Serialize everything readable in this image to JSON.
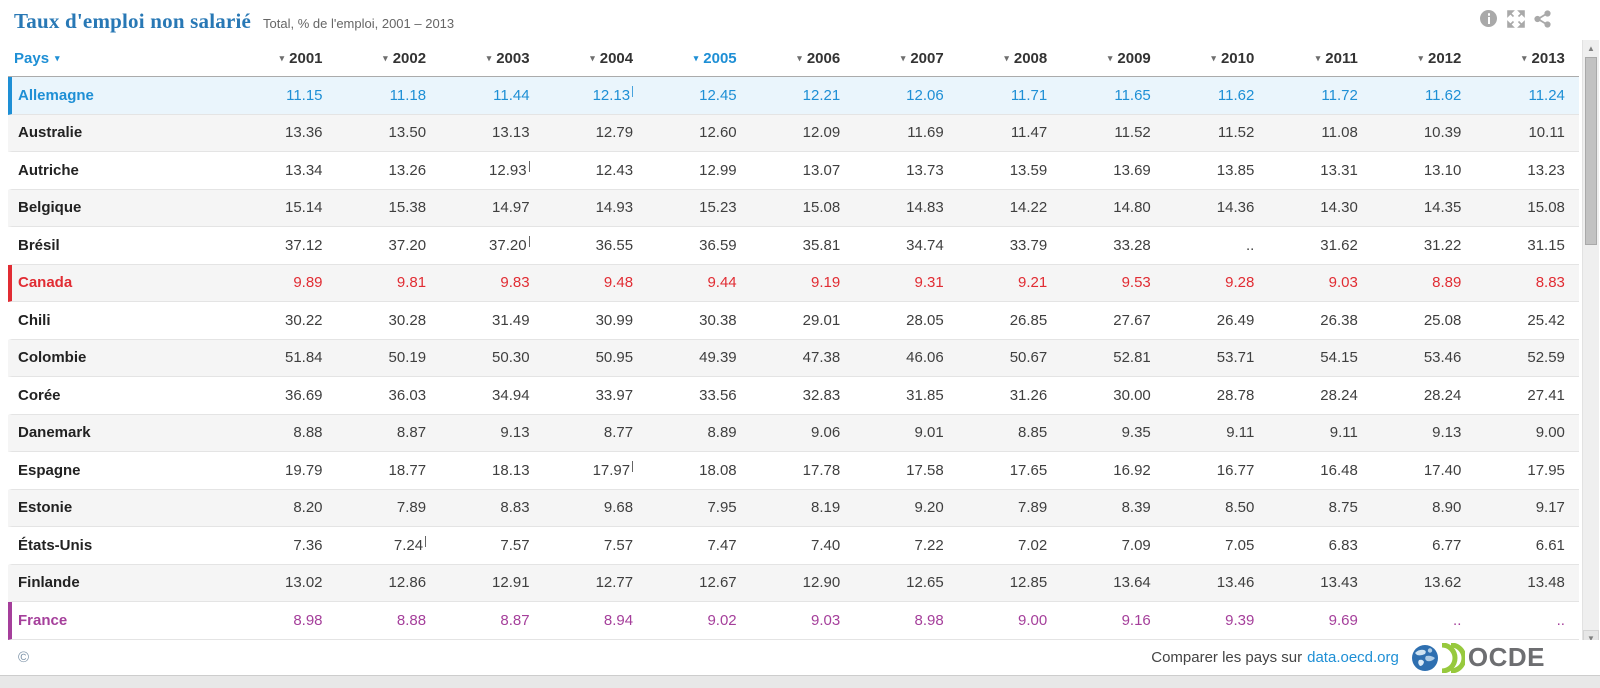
{
  "header": {
    "title": "Taux d'emploi non salarié",
    "subtitle": "Total, % de l'emploi, 2001 – 2013"
  },
  "icons": {
    "sort_caret": "▾",
    "scroll_up": "▲",
    "scroll_down": "▼"
  },
  "table": {
    "country_column_label": "Pays",
    "years": [
      "2001",
      "2002",
      "2003",
      "2004",
      "2005",
      "2006",
      "2007",
      "2008",
      "2009",
      "2010",
      "2011",
      "2012",
      "2013"
    ],
    "selected_year": "2005",
    "missing_value_symbol": "..",
    "rows": [
      {
        "country": "Allemagne",
        "highlight": "blue",
        "breaks": [
          3
        ],
        "values": [
          "11.15",
          "11.18",
          "11.44",
          "12.13",
          "12.45",
          "12.21",
          "12.06",
          "11.71",
          "11.65",
          "11.62",
          "11.72",
          "11.62",
          "11.24"
        ]
      },
      {
        "country": "Australie",
        "highlight": null,
        "breaks": [],
        "values": [
          "13.36",
          "13.50",
          "13.13",
          "12.79",
          "12.60",
          "12.09",
          "11.69",
          "11.47",
          "11.52",
          "11.52",
          "11.08",
          "10.39",
          "10.11"
        ]
      },
      {
        "country": "Autriche",
        "highlight": null,
        "breaks": [
          2
        ],
        "values": [
          "13.34",
          "13.26",
          "12.93",
          "12.43",
          "12.99",
          "13.07",
          "13.73",
          "13.59",
          "13.69",
          "13.85",
          "13.31",
          "13.10",
          "13.23"
        ]
      },
      {
        "country": "Belgique",
        "highlight": null,
        "breaks": [],
        "values": [
          "15.14",
          "15.38",
          "14.97",
          "14.93",
          "15.23",
          "15.08",
          "14.83",
          "14.22",
          "14.80",
          "14.36",
          "14.30",
          "14.35",
          "15.08"
        ]
      },
      {
        "country": "Brésil",
        "highlight": null,
        "breaks": [
          2
        ],
        "values": [
          "37.12",
          "37.20",
          "37.20",
          "36.55",
          "36.59",
          "35.81",
          "34.74",
          "33.79",
          "33.28",
          "..",
          "31.62",
          "31.22",
          "31.15"
        ]
      },
      {
        "country": "Canada",
        "highlight": "red",
        "breaks": [],
        "values": [
          "9.89",
          "9.81",
          "9.83",
          "9.48",
          "9.44",
          "9.19",
          "9.31",
          "9.21",
          "9.53",
          "9.28",
          "9.03",
          "8.89",
          "8.83"
        ]
      },
      {
        "country": "Chili",
        "highlight": null,
        "breaks": [],
        "values": [
          "30.22",
          "30.28",
          "31.49",
          "30.99",
          "30.38",
          "29.01",
          "28.05",
          "26.85",
          "27.67",
          "26.49",
          "26.38",
          "25.08",
          "25.42"
        ]
      },
      {
        "country": "Colombie",
        "highlight": null,
        "breaks": [],
        "values": [
          "51.84",
          "50.19",
          "50.30",
          "50.95",
          "49.39",
          "47.38",
          "46.06",
          "50.67",
          "52.81",
          "53.71",
          "54.15",
          "53.46",
          "52.59"
        ]
      },
      {
        "country": "Corée",
        "highlight": null,
        "breaks": [],
        "values": [
          "36.69",
          "36.03",
          "34.94",
          "33.97",
          "33.56",
          "32.83",
          "31.85",
          "31.26",
          "30.00",
          "28.78",
          "28.24",
          "28.24",
          "27.41"
        ]
      },
      {
        "country": "Danemark",
        "highlight": null,
        "breaks": [],
        "values": [
          "8.88",
          "8.87",
          "9.13",
          "8.77",
          "8.89",
          "9.06",
          "9.01",
          "8.85",
          "9.35",
          "9.11",
          "9.11",
          "9.13",
          "9.00"
        ]
      },
      {
        "country": "Espagne",
        "highlight": null,
        "breaks": [
          3
        ],
        "values": [
          "19.79",
          "18.77",
          "18.13",
          "17.97",
          "18.08",
          "17.78",
          "17.58",
          "17.65",
          "16.92",
          "16.77",
          "16.48",
          "17.40",
          "17.95"
        ]
      },
      {
        "country": "Estonie",
        "highlight": null,
        "breaks": [],
        "values": [
          "8.20",
          "7.89",
          "8.83",
          "9.68",
          "7.95",
          "8.19",
          "9.20",
          "7.89",
          "8.39",
          "8.50",
          "8.75",
          "8.90",
          "9.17"
        ]
      },
      {
        "country": "États-Unis",
        "highlight": null,
        "breaks": [
          1
        ],
        "values": [
          "7.36",
          "7.24",
          "7.57",
          "7.57",
          "7.47",
          "7.40",
          "7.22",
          "7.02",
          "7.09",
          "7.05",
          "6.83",
          "6.77",
          "6.61"
        ]
      },
      {
        "country": "Finlande",
        "highlight": null,
        "breaks": [],
        "values": [
          "13.02",
          "12.86",
          "12.91",
          "12.77",
          "12.67",
          "12.90",
          "12.65",
          "12.85",
          "13.64",
          "13.46",
          "13.43",
          "13.62",
          "13.48"
        ]
      },
      {
        "country": "France",
        "highlight": "purple",
        "breaks": [],
        "values": [
          "8.98",
          "8.88",
          "8.87",
          "8.94",
          "9.02",
          "9.03",
          "8.98",
          "9.00",
          "9.16",
          "9.39",
          "9.69",
          "..",
          ".."
        ]
      }
    ]
  },
  "footer": {
    "copyright": "©",
    "compare_text": "Comparer les pays sur",
    "compare_link": "data.oecd.org",
    "logo_text": "OCDE"
  },
  "colors": {
    "title_blue": "#2878b5",
    "accent_blue": "#1e8fd5",
    "accent_red": "#e12c33",
    "accent_purple": "#a53f9b",
    "row_alt_bg": "#f5f5f5",
    "highlight_row_bg": "#eaf5fc",
    "link_blue": "#1e8fd5",
    "logo_green": "#97c93d",
    "logo_gray": "#6d6e71"
  }
}
